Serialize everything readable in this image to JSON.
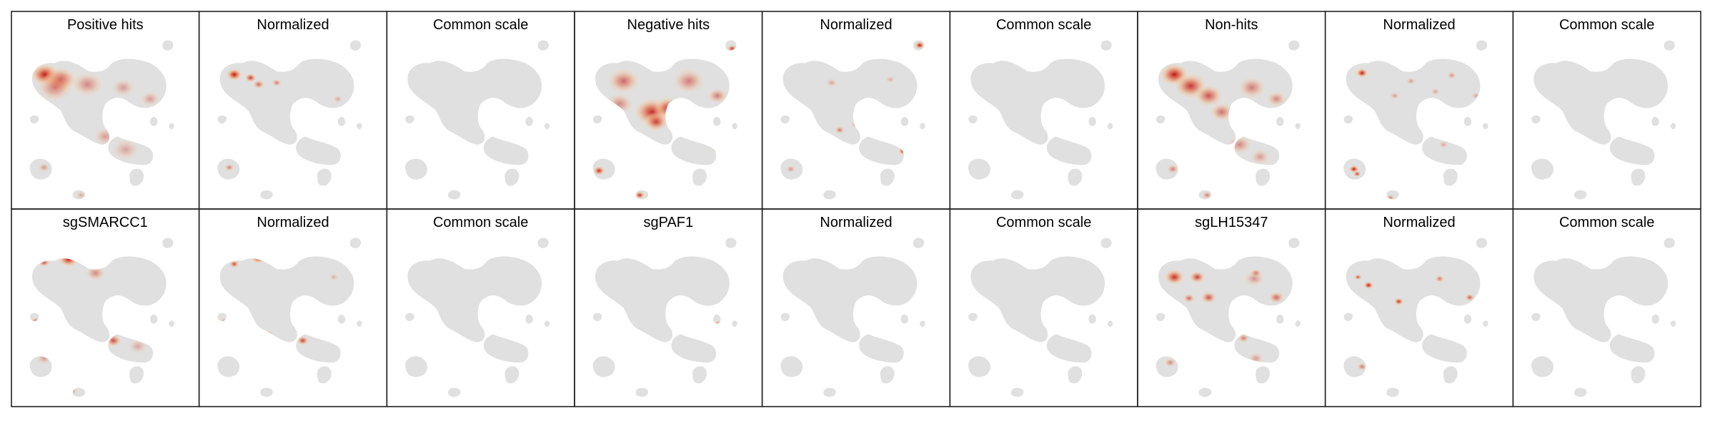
{
  "figure": {
    "rows": 2,
    "cols": 9,
    "background_color": "#e0e0e0",
    "colormap": [
      "#f5e6c8",
      "#f0b48a",
      "#e06a4a",
      "#c0151c"
    ],
    "panels": [
      {
        "title": "Positive hits",
        "hotspots": [
          [
            -0.74,
            0.56,
            0.14,
            1.0
          ],
          [
            -0.55,
            0.5,
            0.16,
            0.75
          ],
          [
            -0.62,
            0.4,
            0.18,
            0.5
          ],
          [
            -0.22,
            0.44,
            0.16,
            0.45
          ],
          [
            0.22,
            0.4,
            0.12,
            0.35
          ],
          [
            0.55,
            0.26,
            0.1,
            0.35
          ],
          [
            0.0,
            -0.2,
            0.12,
            0.35
          ],
          [
            -0.75,
            -0.58,
            0.06,
            0.4
          ],
          [
            0.25,
            -0.36,
            0.14,
            0.3
          ],
          [
            -0.3,
            -0.92,
            0.05,
            0.3
          ]
        ]
      },
      {
        "title": "Normalized",
        "hotspots": [
          [
            -0.72,
            0.56,
            0.08,
            1.0
          ],
          [
            -0.52,
            0.52,
            0.06,
            0.8
          ],
          [
            -0.42,
            0.44,
            0.06,
            0.6
          ],
          [
            -0.2,
            0.46,
            0.05,
            0.5
          ],
          [
            -0.25,
            -0.33,
            0.06,
            0.5
          ],
          [
            -0.78,
            -0.58,
            0.05,
            0.5
          ],
          [
            0.55,
            0.26,
            0.05,
            0.3
          ]
        ]
      },
      {
        "title": "Common scale",
        "hotspots": []
      },
      {
        "title": "Negative hits",
        "hotspots": [
          [
            -0.55,
            0.48,
            0.16,
            0.6
          ],
          [
            -0.2,
            0.1,
            0.18,
            0.9
          ],
          [
            0.0,
            0.15,
            0.14,
            0.85
          ],
          [
            -0.15,
            -0.02,
            0.12,
            0.8
          ],
          [
            0.25,
            0.48,
            0.16,
            0.5
          ],
          [
            0.6,
            0.3,
            0.1,
            0.5
          ],
          [
            0.78,
            0.88,
            0.05,
            0.8
          ],
          [
            0.6,
            -0.36,
            0.05,
            0.8
          ],
          [
            -0.85,
            -0.62,
            0.06,
            0.9
          ],
          [
            -0.35,
            -0.92,
            0.05,
            0.9
          ],
          [
            0.2,
            -0.75,
            0.06,
            0.5
          ],
          [
            -0.6,
            0.2,
            0.14,
            0.45
          ]
        ]
      },
      {
        "title": "Normalized",
        "hotspots": [
          [
            0.78,
            0.92,
            0.05,
            1.0
          ],
          [
            0.58,
            -0.38,
            0.05,
            1.0
          ],
          [
            -0.2,
            -0.12,
            0.05,
            0.55
          ],
          [
            0.0,
            -0.05,
            0.05,
            0.4
          ],
          [
            -0.3,
            0.46,
            0.06,
            0.3
          ],
          [
            -0.8,
            -0.6,
            0.05,
            0.4
          ],
          [
            0.25,
            0.1,
            0.05,
            0.3
          ],
          [
            0.42,
            0.5,
            0.05,
            0.25
          ]
        ]
      },
      {
        "title": "Common scale",
        "hotspots": []
      },
      {
        "title": "Non-hits",
        "hotspots": [
          [
            -0.7,
            0.56,
            0.14,
            1.0
          ],
          [
            -0.5,
            0.42,
            0.16,
            0.85
          ],
          [
            -0.28,
            0.3,
            0.14,
            0.7
          ],
          [
            -0.12,
            0.1,
            0.12,
            0.55
          ],
          [
            0.25,
            0.4,
            0.14,
            0.5
          ],
          [
            0.55,
            0.26,
            0.1,
            0.45
          ],
          [
            0.1,
            -0.3,
            0.12,
            0.45
          ],
          [
            -0.72,
            -0.6,
            0.06,
            0.5
          ],
          [
            -0.3,
            -0.92,
            0.05,
            0.5
          ],
          [
            0.35,
            -0.45,
            0.1,
            0.35
          ]
        ]
      },
      {
        "title": "Normalized",
        "hotspots": [
          [
            -0.7,
            0.58,
            0.06,
            1.0
          ],
          [
            -0.8,
            -0.6,
            0.05,
            1.0
          ],
          [
            -0.76,
            -0.66,
            0.04,
            0.8
          ],
          [
            0.4,
            0.55,
            0.05,
            0.4
          ],
          [
            -0.1,
            0.48,
            0.05,
            0.35
          ],
          [
            -0.3,
            0.3,
            0.05,
            0.35
          ],
          [
            0.2,
            0.35,
            0.05,
            0.3
          ],
          [
            -0.35,
            -0.95,
            0.04,
            0.5
          ],
          [
            0.3,
            -0.3,
            0.05,
            0.3
          ],
          [
            0.7,
            0.3,
            0.05,
            0.3
          ]
        ]
      },
      {
        "title": "Common scale",
        "hotspots": []
      },
      {
        "title": "sgSMARCC1",
        "hotspots": [
          [
            -0.45,
            0.72,
            0.1,
            0.95
          ],
          [
            -0.75,
            0.68,
            0.06,
            0.7
          ],
          [
            -0.12,
            0.55,
            0.1,
            0.45
          ],
          [
            0.1,
            -0.28,
            0.08,
            0.75
          ],
          [
            -0.85,
            -0.04,
            0.05,
            0.6
          ],
          [
            -0.75,
            -0.5,
            0.08,
            0.35
          ],
          [
            0.4,
            -0.35,
            0.1,
            0.3
          ],
          [
            0.8,
            0.6,
            0.04,
            0.35
          ],
          [
            -0.4,
            -0.9,
            0.05,
            0.3
          ]
        ]
      },
      {
        "title": "Normalized",
        "hotspots": [
          [
            -0.42,
            0.74,
            0.08,
            1.0
          ],
          [
            -0.72,
            0.66,
            0.05,
            0.75
          ],
          [
            0.12,
            -0.28,
            0.06,
            0.8
          ],
          [
            -0.84,
            -0.04,
            0.04,
            0.55
          ],
          [
            -0.3,
            -0.2,
            0.05,
            0.4
          ],
          [
            0.5,
            0.5,
            0.05,
            0.25
          ]
        ]
      },
      {
        "title": "Common scale",
        "hotspots": []
      },
      {
        "title": "sgPAF1",
        "hotspots": [
          [
            0.62,
            -0.08,
            0.05,
            0.9
          ],
          [
            0.6,
            -0.16,
            0.04,
            0.5
          ]
        ]
      },
      {
        "title": "Normalized",
        "hotspots": [
          [
            0.62,
            -0.12,
            0.05,
            1.0
          ]
        ]
      },
      {
        "title": "Common scale",
        "hotspots": []
      },
      {
        "title": "sgLH15347",
        "hotspots": [
          [
            -0.7,
            0.5,
            0.1,
            0.9
          ],
          [
            -0.42,
            0.5,
            0.08,
            0.8
          ],
          [
            -0.28,
            0.25,
            0.08,
            0.7
          ],
          [
            -0.52,
            0.24,
            0.06,
            0.6
          ],
          [
            0.28,
            0.48,
            0.1,
            0.4
          ],
          [
            0.55,
            0.25,
            0.08,
            0.6
          ],
          [
            0.3,
            0.55,
            0.06,
            0.5
          ],
          [
            0.15,
            -0.25,
            0.06,
            0.5
          ],
          [
            -0.35,
            -0.3,
            0.05,
            0.55
          ],
          [
            -0.75,
            -0.55,
            0.06,
            0.45
          ],
          [
            0.3,
            -0.5,
            0.08,
            0.35
          ],
          [
            0.82,
            0.0,
            0.05,
            0.35
          ]
        ]
      },
      {
        "title": "Normalized",
        "hotspots": [
          [
            -0.62,
            0.4,
            0.05,
            1.0
          ],
          [
            -0.25,
            0.2,
            0.05,
            0.85
          ],
          [
            -0.75,
            0.5,
            0.04,
            0.7
          ],
          [
            0.62,
            0.25,
            0.05,
            0.65
          ],
          [
            0.25,
            0.48,
            0.05,
            0.5
          ],
          [
            -0.05,
            -0.35,
            0.04,
            0.7
          ],
          [
            -0.32,
            -0.25,
            0.04,
            0.6
          ],
          [
            -0.7,
            -0.6,
            0.05,
            0.55
          ],
          [
            0.18,
            -0.55,
            0.05,
            0.5
          ],
          [
            0.8,
            0.0,
            0.04,
            0.45
          ]
        ]
      },
      {
        "title": "Common scale",
        "hotspots": []
      }
    ]
  }
}
